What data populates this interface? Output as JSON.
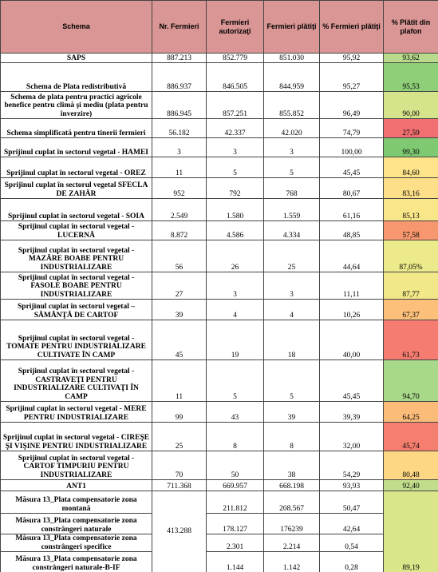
{
  "table": {
    "header": [
      "Schema",
      "Nr. Fermieri",
      "Fermieri autorizaţi",
      "Fermieri plătiţi",
      "% Fermieri plătiţi",
      "% Plătit din plafon"
    ],
    "rows": [
      [
        "SAPS",
        "887.213",
        "852.779",
        "851.030",
        "95,92",
        "93,62"
      ],
      [
        "Schema de Plata redistributivă",
        "886.937",
        "846.505",
        "844.959",
        "95,27",
        "95,53"
      ],
      [
        "Schema de plata pentru practici agricole benefice pentru climă şi mediu (plata pentru înverzire)",
        "886.945",
        "857.251",
        "855.852",
        "96,49",
        "90,00"
      ],
      [
        "Schema simplificată pentru tinerii fermieri",
        "56.182",
        "42.337",
        "42.020",
        "74,79",
        "27,59"
      ],
      [
        "Sprijinul cuplat în sectorul vegetal - HAMEI",
        "3",
        "3",
        "3",
        "100,00",
        "99,30"
      ],
      [
        "Sprijinul cuplat în sectorul vegetal - OREZ",
        "11",
        "5",
        "5",
        "45,45",
        "84,60"
      ],
      [
        "Sprijinul cuplat în sectorul vegetal SFECLA DE ZAHĂR",
        "952",
        "792",
        "768",
        "80,67",
        "83,16"
      ],
      [
        "Sprijinul cuplat în sectorul vegetal - SOIA",
        "2.549",
        "1.580",
        "1.559",
        "61,16",
        "85,13"
      ],
      [
        "Sprijinul cuplat în sectorul vegetal - LUCERNĂ",
        "8.872",
        "4.586",
        "4.334",
        "48,85",
        "57,58"
      ],
      [
        "Sprijinul cuplat în sectorul vegetal - MAZĂRE BOABE PENTRU INDUSTRIALIZARE",
        "56",
        "26",
        "25",
        "44,64",
        "87,05%"
      ],
      [
        "Sprijinul cuplat în sectorul vegetal - FASOLE BOABE PENTRU INDUSTRIALIZARE",
        "27",
        "3",
        "3",
        "11,11",
        "87,77"
      ],
      [
        "Sprijinul cuplat în sectorul vegetal – SĂMÂNŢĂ DE CARTOF",
        "39",
        "4",
        "4",
        "10,26",
        "67,37"
      ],
      [
        "Sprijinul cuplat în sectorul vegetal - TOMATE PENTRU INDUSTRIALIZARE CULTIVATE ÎN CAMP",
        "45",
        "19",
        "18",
        "40,00",
        "61,73"
      ],
      [
        "Sprijinul cuplat în sectorul vegetal - CASTRAVEŢI PENTRU INDUSTRIALIZARE CULTIVAŢI ÎN CAMP",
        "11",
        "5",
        "5",
        "45,45",
        "94,70"
      ],
      [
        "Sprijinul cuplat în sectorul vegetal - MERE PENTRU INDUSTRIALIZARE",
        "99",
        "43",
        "39",
        "39,39",
        "64,25"
      ],
      [
        "Sprijinul cuplat în sectorul vegetal - CIREŞE ŞI VIŞINE PENTRU INDUSTRIALIZARE",
        "25",
        "8",
        "8",
        "32,00",
        "45,74"
      ],
      [
        "Sprijinul cuplat în sectorul vegetal - CARTOF TIMPURIU PENTRU INDUSTRIALIZARE",
        "70",
        "50",
        "38",
        "54,29",
        "80,48"
      ],
      [
        "ANT1",
        "711.368",
        "669.957",
        "668.198",
        "93,93",
        "92,40"
      ],
      [
        "Măsura 13_Plata compensatorie zona montană",
        "413.288",
        "211.812",
        "208.567",
        "50,47",
        "89,19"
      ],
      [
        "Măsura 13_Plata compensatorie zona constrângeri naturale",
        "178.127",
        "176239",
        "42,64"
      ],
      [
        "Măsura 13_Plata compensatorie zona constrângeri specifice",
        "2.301",
        "2.214",
        "0,54"
      ],
      [
        "Măsura 13_Plata compensatorie zona constrângeri naturale-B-IF",
        "1.144",
        "1.142",
        "0,28"
      ]
    ],
    "plafon_colors": [
      "#b7da8c",
      "#8fcf77",
      "#d5e38b",
      "#f07071",
      "#7fc972",
      "#fde38a",
      "#fddf89",
      "#f9e689",
      "#f6976f",
      "#ecea8a",
      "#f2e889",
      "#fcc07a",
      "#f57c70",
      "#a8d889",
      "#fbbc79",
      "#f47f6f",
      "#fdd784",
      "#c1dd8b",
      "#dbe58a"
    ]
  }
}
